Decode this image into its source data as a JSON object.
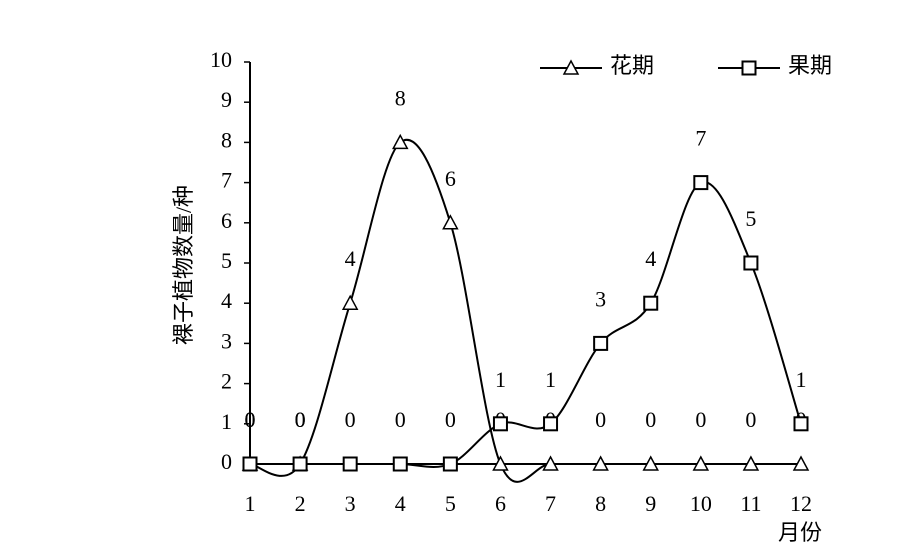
{
  "chart_data": {
    "type": "line",
    "y_label": "裸子植物数量/种",
    "x_label": "月份",
    "categories": [
      "1",
      "2",
      "3",
      "4",
      "5",
      "6",
      "7",
      "8",
      "9",
      "10",
      "11",
      "12"
    ],
    "series": [
      {
        "name": "花期",
        "color": "#000000",
        "marker": "triangle",
        "values": [
          0,
          0,
          4,
          8,
          6,
          0,
          0,
          0,
          0,
          0,
          0,
          0
        ]
      },
      {
        "name": "果期",
        "color": "#000000",
        "marker": "square",
        "values": [
          0,
          0,
          0,
          0,
          0,
          1,
          1,
          3,
          4,
          7,
          5,
          1
        ]
      }
    ],
    "ylim": [
      0,
      10
    ],
    "yticks": [
      0,
      1,
      2,
      3,
      4,
      5,
      6,
      7,
      8,
      9,
      10
    ],
    "smooth": true,
    "legend": "top-right"
  }
}
